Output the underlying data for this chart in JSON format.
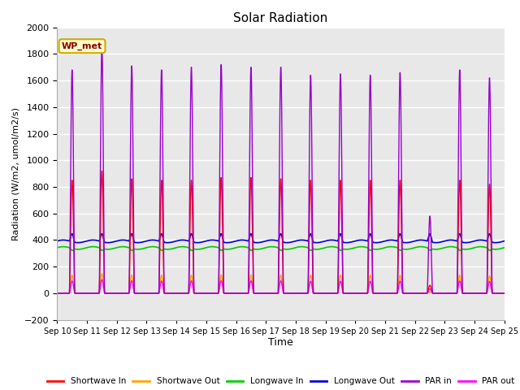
{
  "title": "Solar Radiation",
  "ylabel": "Radiation (W/m2, umol/m2/s)",
  "xlabel": "Time",
  "ylim": [
    -200,
    2000
  ],
  "yticks": [
    -200,
    0,
    200,
    400,
    600,
    800,
    1000,
    1200,
    1400,
    1600,
    1800,
    2000
  ],
  "xtick_labels": [
    "Sep 10",
    "Sep 11",
    "Sep 12",
    "Sep 13",
    "Sep 14",
    "Sep 15",
    "Sep 16",
    "Sep 17",
    "Sep 18",
    "Sep 19",
    "Sep 20",
    "Sep 21",
    "Sep 22",
    "Sep 23",
    "Sep 24",
    "Sep 25"
  ],
  "num_days": 15,
  "bg_color": "#e8e8e8",
  "grid_color": "#ffffff",
  "annotation_text": "WP_met",
  "annotation_color": "#8b0000",
  "annotation_bg": "#ffffcc",
  "line_colors": {
    "shortwave_in": "#ff0000",
    "shortwave_out": "#ffa500",
    "longwave_in": "#00cc00",
    "longwave_out": "#0000cc",
    "par_in": "#9900cc",
    "par_out": "#ff00ff"
  },
  "sw_in_peaks": [
    850,
    920,
    860,
    850,
    850,
    870,
    870,
    860,
    850,
    850,
    850,
    850,
    60,
    850,
    820
  ],
  "par_in_peaks": [
    1680,
    1860,
    1710,
    1680,
    1700,
    1720,
    1700,
    1700,
    1640,
    1650,
    1640,
    1660,
    580,
    1680,
    1620
  ],
  "lw_in_base": 340,
  "lw_out_base": 390,
  "legend_labels": [
    "Shortwave In",
    "Shortwave Out",
    "Longwave In",
    "Longwave Out",
    "PAR in",
    "PAR out"
  ]
}
